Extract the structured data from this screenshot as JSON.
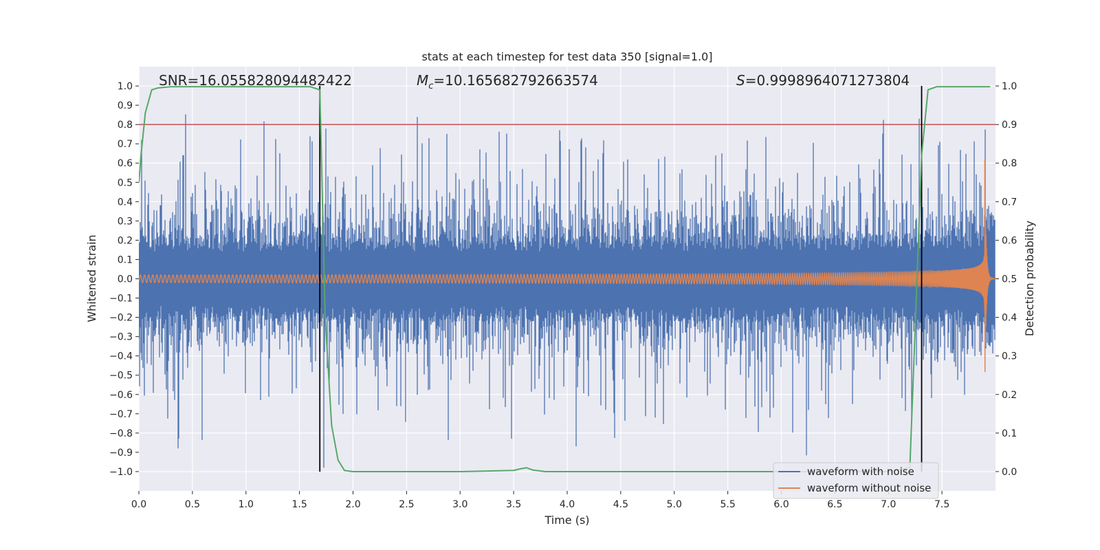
{
  "chart_data": {
    "type": "line",
    "title": "stats at each timestep for test data 350 [signal=1.0]",
    "xlabel": "Time (s)",
    "ylabel_left": "Whitened strain",
    "ylabel_right": "Detection probability",
    "xlim": [
      0.0,
      8.0
    ],
    "ylim_left": [
      -1.1,
      1.1
    ],
    "ylim_right": [
      -0.05,
      1.05
    ],
    "x_ticks": [
      "0.0",
      "0.5",
      "1.0",
      "1.5",
      "2.0",
      "2.5",
      "3.0",
      "3.5",
      "4.0",
      "4.5",
      "5.0",
      "5.5",
      "6.0",
      "6.5",
      "7.0",
      "7.5"
    ],
    "y_left_ticks": [
      "1.0",
      "0.9",
      "0.8",
      "0.7",
      "0.6",
      "0.5",
      "0.4",
      "0.3",
      "0.2",
      "0.1",
      "0.0",
      "−0.1",
      "−0.2",
      "−0.3",
      "−0.4",
      "−0.5",
      "−0.6",
      "−0.7",
      "−0.8",
      "−0.9",
      "−1.0"
    ],
    "y_right_ticks": [
      "1.0",
      "0.9",
      "0.8",
      "0.7",
      "0.6",
      "0.5",
      "0.4",
      "0.3",
      "0.2",
      "0.1",
      "0.0"
    ],
    "annotations": {
      "snr": "SNR=16.055828094482422",
      "mc_symbol": "M",
      "mc_sub": "c",
      "mc_value": "=10.165682792663574",
      "s_symbol": "S",
      "s_value": "=0.9998964071273804"
    },
    "threshold_line": {
      "value": 0.9,
      "axis": "right",
      "color": "#c44e52"
    },
    "vertical_lines": [
      1.69,
      7.31
    ],
    "series": [
      {
        "name": "waveform with noise",
        "color": "#4c72b0",
        "kind": "noise",
        "envelope": 0.42,
        "peak": 0.98
      },
      {
        "name": "waveform without noise",
        "color": "#dd8452",
        "kind": "chirp",
        "start_amplitude": 0.02,
        "end_amplitude": 0.62,
        "merger_time": 7.9
      },
      {
        "name": "detection probability",
        "color": "#55a868",
        "axis": "right",
        "x": [
          0.0,
          0.02,
          0.06,
          0.12,
          0.18,
          0.3,
          0.8,
          1.2,
          1.6,
          1.69,
          1.74,
          1.8,
          1.86,
          1.92,
          2.0,
          3.0,
          3.5,
          3.56,
          3.62,
          3.68,
          3.8,
          5.0,
          6.0,
          7.0,
          7.2,
          7.24,
          7.31,
          7.37,
          7.45,
          7.6,
          7.95
        ],
        "y": [
          0.75,
          0.82,
          0.93,
          0.99,
          0.995,
          0.998,
          0.998,
          0.998,
          0.998,
          0.99,
          0.4,
          0.12,
          0.03,
          0.003,
          0.0,
          0.0,
          0.003,
          0.007,
          0.01,
          0.004,
          0.0,
          0.0,
          0.0,
          0.0,
          0.01,
          0.3,
          0.82,
          0.99,
          0.998,
          0.998,
          0.998
        ]
      }
    ],
    "legend": [
      "waveform with noise",
      "waveform without noise"
    ],
    "legend_position": "lower-right",
    "grid": true
  }
}
